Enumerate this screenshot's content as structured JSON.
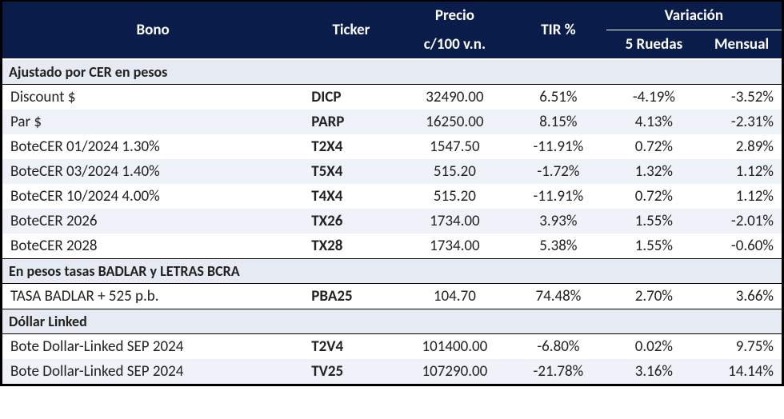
{
  "colors": {
    "header_bg": "#0a1d4a",
    "header_text": "#ffffff",
    "section_bg": "#e6eaf2",
    "row_even": "#ffffff",
    "row_odd": "#eff2f8",
    "border": "#000000",
    "text": "#222222"
  },
  "header": {
    "bono": "Bono",
    "ticker": "Ticker",
    "precio_line1": "Precio",
    "precio_line2": "c/100 v.n.",
    "tir": "TIR %",
    "variacion": "Variación",
    "ruedas5": "5 Ruedas",
    "mensual": "Mensual"
  },
  "sections": [
    {
      "title": "Ajustado por CER en pesos",
      "rows": [
        {
          "bono": "Discount $",
          "ticker": "DICP",
          "precio": "32490.00",
          "tir": "6.51%",
          "r5": "-4.19%",
          "men": "-3.52%"
        },
        {
          "bono": "Par $",
          "ticker": "PARP",
          "precio": "16250.00",
          "tir": "8.15%",
          "r5": "4.13%",
          "men": "-2.31%"
        },
        {
          "bono": "BoteCER  01/2024  1.30%",
          "ticker": "T2X4",
          "precio": "1547.50",
          "tir": "-11.91%",
          "r5": "0.72%",
          "men": "2.89%"
        },
        {
          "bono": "BoteCER 03/2024  1.40%",
          "ticker": "T5X4",
          "precio": "515.20",
          "tir": "-1.72%",
          "r5": "1.32%",
          "men": "1.12%"
        },
        {
          "bono": "BoteCER 10/2024  4.00%",
          "ticker": "T4X4",
          "precio": "515.20",
          "tir": "-11.91%",
          "r5": "0.72%",
          "men": "1.12%"
        },
        {
          "bono": "BoteCER 2026",
          "ticker": "TX26",
          "precio": "1734.00",
          "tir": "3.93%",
          "r5": "1.55%",
          "men": "-2.01%"
        },
        {
          "bono": "BoteCER 2028",
          "ticker": "TX28",
          "precio": "1734.00",
          "tir": "5.38%",
          "r5": "1.55%",
          "men": "-0.60%"
        }
      ]
    },
    {
      "title": "En pesos tasas BADLAR y LETRAS BCRA",
      "rows": [
        {
          "bono": "TASA BADLAR + 525 p.b.",
          "ticker": "PBA25",
          "precio": "104.70",
          "tir": "74.48%",
          "r5": "2.70%",
          "men": "3.66%"
        }
      ]
    },
    {
      "title": "Dóllar Linked",
      "rows": [
        {
          "bono": "Bote Dollar-Linked SEP 2024",
          "ticker": "T2V4",
          "precio": "101400.00",
          "tir": "-6.80%",
          "r5": "0.02%",
          "men": "9.75%"
        },
        {
          "bono": "Bote Dollar-Linked SEP 2024",
          "ticker": "TV25",
          "precio": "107290.00",
          "tir": "-21.78%",
          "r5": "3.16%",
          "men": "14.14%"
        }
      ]
    }
  ]
}
